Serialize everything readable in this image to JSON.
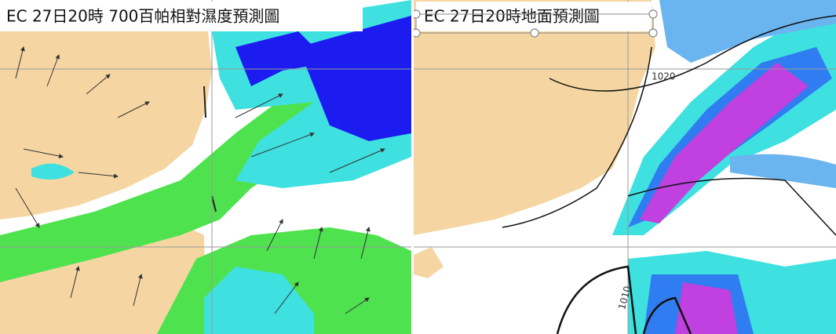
{
  "panels": [
    {
      "title": "EC 27日20時 700百帕相對濕度預測圖"
    },
    {
      "title": "EC 27日20時地面預測圖",
      "isobar_labels": [
        "1020",
        "1010"
      ]
    }
  ]
}
